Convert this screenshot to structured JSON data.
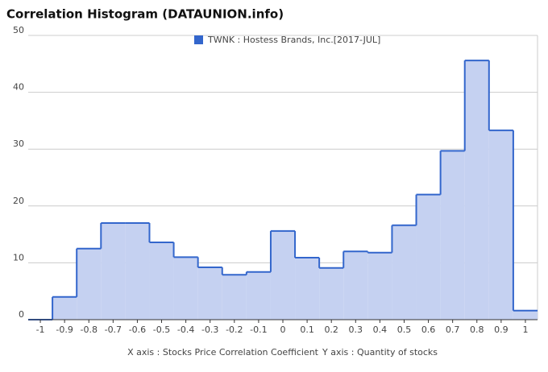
{
  "chart_data": {
    "type": "histogram",
    "title": "Correlation Histogram (DATAUNION.info)",
    "xlabel": "X axis : Stocks Price Correlation Coefficient",
    "ylabel": "Y axis : Quantity of stocks",
    "series_name": "TWNK : Hostess Brands, Inc.[2017-JUL]",
    "color": "#3366cc",
    "fill": "#c5d1f1",
    "bins": [
      -1.05,
      -0.95,
      -0.85,
      -0.75,
      -0.65,
      -0.55,
      -0.45,
      -0.35,
      -0.25,
      -0.15,
      -0.05,
      0.05,
      0.15,
      0.25,
      0.35,
      0.45,
      0.55,
      0.65,
      0.75,
      0.85,
      0.95,
      1.05
    ],
    "values": [
      0,
      4,
      12.5,
      17,
      17,
      13.6,
      11,
      9.2,
      7.9,
      8.4,
      15.6,
      10.9,
      9.1,
      12,
      11.8,
      16.6,
      22,
      29.7,
      45.6,
      33.3,
      1.6
    ],
    "xlim": [
      -1.05,
      1.05
    ],
    "xticks": [
      -1,
      -0.9,
      -0.8,
      -0.7,
      -0.6,
      -0.5,
      -0.4,
      -0.3,
      -0.2,
      -0.1,
      0,
      0.1,
      0.2,
      0.3,
      0.4,
      0.5,
      0.6,
      0.7,
      0.8,
      0.9,
      1
    ],
    "ylim": [
      0,
      50
    ],
    "yticks": [
      0,
      10,
      20,
      30,
      40,
      50
    ],
    "grid": true
  }
}
